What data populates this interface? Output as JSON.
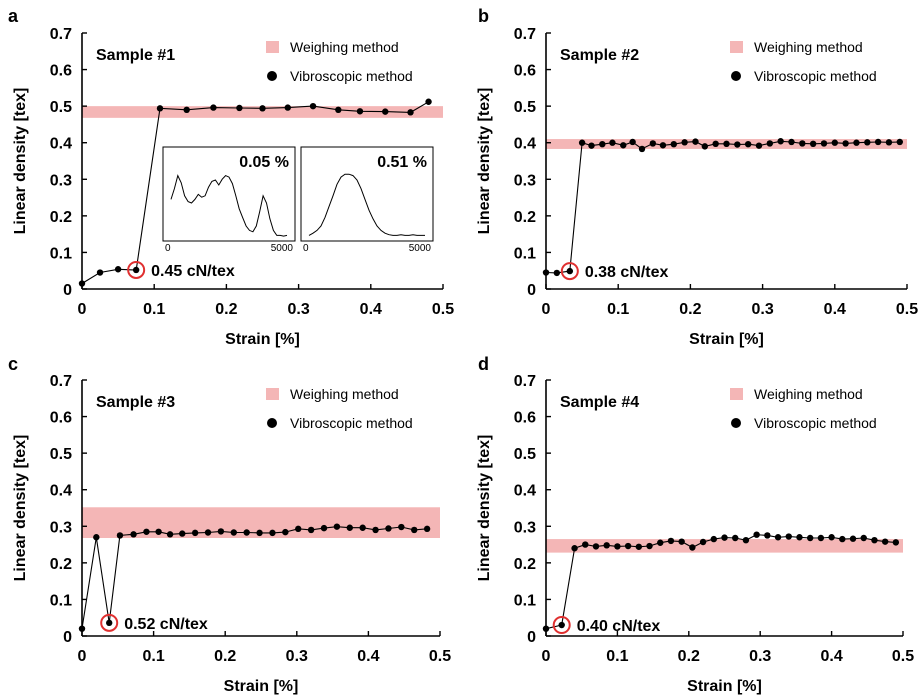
{
  "legend": {
    "weighing_label": "Weighing method",
    "vibroscopic_label": "Vibroscopic method"
  },
  "colors": {
    "band": "#f4b6b6",
    "marker": "#000000",
    "circle": "#e03030",
    "line": "#000000"
  },
  "chart_data": [
    {
      "panel": "a",
      "type": "line",
      "title": "Sample #1",
      "xlabel": "Strain [%]",
      "ylabel": "Linear density [tex]",
      "xlim": [
        0,
        0.5
      ],
      "ylim": [
        0,
        0.7
      ],
      "xticks": [
        0,
        0.1,
        0.2,
        0.3,
        0.4,
        0.5
      ],
      "xtick_labels": [
        "0",
        "0.1",
        "0.2",
        "0.3",
        "0.4",
        "0.5"
      ],
      "yticks": [
        0,
        0.1,
        0.2,
        0.3,
        0.4,
        0.5,
        0.6,
        0.7
      ],
      "ytick_labels": [
        "0",
        "0.1",
        "0.2",
        "0.3",
        "0.4",
        "0.5",
        "0.6",
        "0.7"
      ],
      "band": {
        "name": "Weighing method",
        "ymin": 0.468,
        "ymax": 0.5
      },
      "series": [
        {
          "name": "Vibroscopic method",
          "x": [
            0.0,
            0.025,
            0.05,
            0.075,
            0.108,
            0.145,
            0.182,
            0.218,
            0.25,
            0.285,
            0.32,
            0.355,
            0.385,
            0.42,
            0.455,
            0.48
          ],
          "y": [
            0.015,
            0.045,
            0.054,
            0.052,
            0.494,
            0.49,
            0.496,
            0.495,
            0.494,
            0.496,
            0.5,
            0.49,
            0.486,
            0.485,
            0.483,
            0.512
          ]
        }
      ],
      "highlight": {
        "x": 0.075,
        "y": 0.052
      },
      "annotation": "0.45 cN/tex",
      "insets": [
        {
          "label": "0.05 %",
          "xticks": [
            "0",
            "5000"
          ],
          "profile": [
            0.55,
            0.7,
            0.88,
            0.78,
            0.6,
            0.52,
            0.5,
            0.55,
            0.62,
            0.58,
            0.6,
            0.72,
            0.8,
            0.82,
            0.75,
            0.83,
            0.88,
            0.86,
            0.77,
            0.6,
            0.42,
            0.3,
            0.18,
            0.12,
            0.1,
            0.18,
            0.38,
            0.6,
            0.5,
            0.28,
            0.12,
            0.05,
            0.05,
            0.04,
            0.05
          ]
        },
        {
          "label": "0.51 %",
          "xticks": [
            "0",
            "5000"
          ],
          "profile": [
            0.05,
            0.08,
            0.12,
            0.18,
            0.3,
            0.45,
            0.6,
            0.76,
            0.86,
            0.9,
            0.9,
            0.88,
            0.82,
            0.7,
            0.55,
            0.4,
            0.28,
            0.18,
            0.12,
            0.08,
            0.06,
            0.05,
            0.05,
            0.06,
            0.05,
            0.05,
            0.06,
            0.05,
            0.05,
            0.05
          ]
        }
      ]
    },
    {
      "panel": "b",
      "type": "line",
      "title": "Sample #2",
      "xlabel": "Strain [%]",
      "ylabel": "Linear density [tex]",
      "xlim": [
        0,
        0.5
      ],
      "ylim": [
        0,
        0.7
      ],
      "xticks": [
        0,
        0.1,
        0.2,
        0.3,
        0.4,
        0.5
      ],
      "xtick_labels": [
        "0",
        "0.1",
        "0.2",
        "0.3",
        "0.4",
        "0.5"
      ],
      "yticks": [
        0,
        0.1,
        0.2,
        0.3,
        0.4,
        0.5,
        0.6,
        0.7
      ],
      "ytick_labels": [
        "0",
        "0.1",
        "0.2",
        "0.3",
        "0.4",
        "0.5",
        "0.6",
        "0.7"
      ],
      "band": {
        "name": "Weighing method",
        "ymin": 0.383,
        "ymax": 0.41
      },
      "series": [
        {
          "name": "Vibroscopic method",
          "x": [
            0.0,
            0.015,
            0.033,
            0.05,
            0.063,
            0.078,
            0.092,
            0.107,
            0.12,
            0.133,
            0.148,
            0.162,
            0.177,
            0.192,
            0.207,
            0.22,
            0.235,
            0.25,
            0.265,
            0.28,
            0.295,
            0.31,
            0.325,
            0.34,
            0.355,
            0.37,
            0.385,
            0.4,
            0.415,
            0.43,
            0.445,
            0.46,
            0.475,
            0.49
          ],
          "y": [
            0.045,
            0.044,
            0.049,
            0.4,
            0.392,
            0.396,
            0.4,
            0.393,
            0.402,
            0.383,
            0.398,
            0.393,
            0.396,
            0.401,
            0.403,
            0.39,
            0.397,
            0.397,
            0.395,
            0.396,
            0.392,
            0.398,
            0.404,
            0.402,
            0.398,
            0.397,
            0.398,
            0.4,
            0.398,
            0.4,
            0.401,
            0.402,
            0.401,
            0.402
          ]
        }
      ],
      "highlight": {
        "x": 0.033,
        "y": 0.049
      },
      "annotation": "0.38 cN/tex"
    },
    {
      "panel": "c",
      "type": "line",
      "title": "Sample #3",
      "xlabel": "Strain [%]",
      "ylabel": "Linear density [tex]",
      "xlim": [
        0,
        0.5
      ],
      "ylim": [
        0,
        0.7
      ],
      "xticks": [
        0,
        0.1,
        0.2,
        0.3,
        0.4,
        0.5
      ],
      "xtick_labels": [
        "0",
        "0.1",
        "0.2",
        "0.3",
        "0.4",
        "0.5"
      ],
      "yticks": [
        0,
        0.1,
        0.2,
        0.3,
        0.4,
        0.5,
        0.6,
        0.7
      ],
      "ytick_labels": [
        "0",
        "0.1",
        "0.2",
        "0.3",
        "0.4",
        "0.5",
        "0.6",
        "0.7"
      ],
      "band": {
        "name": "Weighing method",
        "ymin": 0.268,
        "ymax": 0.352
      },
      "series": [
        {
          "name": "Vibroscopic method",
          "x": [
            0.0,
            0.02,
            0.038,
            0.053,
            0.072,
            0.09,
            0.107,
            0.123,
            0.14,
            0.158,
            0.176,
            0.194,
            0.212,
            0.23,
            0.248,
            0.266,
            0.284,
            0.302,
            0.32,
            0.338,
            0.356,
            0.374,
            0.392,
            0.41,
            0.428,
            0.446,
            0.464,
            0.482
          ],
          "y": [
            0.02,
            0.27,
            0.036,
            0.275,
            0.278,
            0.285,
            0.285,
            0.278,
            0.28,
            0.282,
            0.283,
            0.286,
            0.283,
            0.283,
            0.282,
            0.282,
            0.284,
            0.293,
            0.29,
            0.295,
            0.299,
            0.296,
            0.296,
            0.29,
            0.294,
            0.298,
            0.29,
            0.293
          ]
        }
      ],
      "highlight": {
        "x": 0.038,
        "y": 0.036
      },
      "annotation": "0.52 cN/tex"
    },
    {
      "panel": "d",
      "type": "line",
      "title": "Sample #4",
      "xlabel": "Strain [%]",
      "ylabel": "Linear density [tex]",
      "xlim": [
        0,
        0.5
      ],
      "ylim": [
        0,
        0.7
      ],
      "xticks": [
        0,
        0.1,
        0.2,
        0.3,
        0.4,
        0.5
      ],
      "xtick_labels": [
        "0",
        "0.1",
        "0.2",
        "0.3",
        "0.4",
        "0.5"
      ],
      "yticks": [
        0,
        0.1,
        0.2,
        0.3,
        0.4,
        0.5,
        0.6,
        0.7
      ],
      "ytick_labels": [
        "0",
        "0.1",
        "0.2",
        "0.3",
        "0.4",
        "0.5",
        "0.6",
        "0.7"
      ],
      "band": {
        "name": "Weighing method",
        "ymin": 0.228,
        "ymax": 0.265
      },
      "series": [
        {
          "name": "Vibroscopic method",
          "x": [
            0.0,
            0.022,
            0.04,
            0.055,
            0.07,
            0.085,
            0.1,
            0.115,
            0.13,
            0.145,
            0.16,
            0.175,
            0.19,
            0.205,
            0.22,
            0.235,
            0.25,
            0.265,
            0.28,
            0.295,
            0.31,
            0.325,
            0.34,
            0.355,
            0.37,
            0.385,
            0.4,
            0.415,
            0.43,
            0.445,
            0.46,
            0.475,
            0.49
          ],
          "y": [
            0.02,
            0.03,
            0.24,
            0.25,
            0.245,
            0.248,
            0.245,
            0.246,
            0.244,
            0.246,
            0.255,
            0.26,
            0.258,
            0.242,
            0.257,
            0.265,
            0.269,
            0.268,
            0.262,
            0.277,
            0.275,
            0.27,
            0.272,
            0.27,
            0.268,
            0.268,
            0.27,
            0.265,
            0.266,
            0.268,
            0.262,
            0.258,
            0.256
          ]
        }
      ],
      "highlight": {
        "x": 0.022,
        "y": 0.03
      },
      "annotation": "0.40 cN/tex"
    }
  ]
}
